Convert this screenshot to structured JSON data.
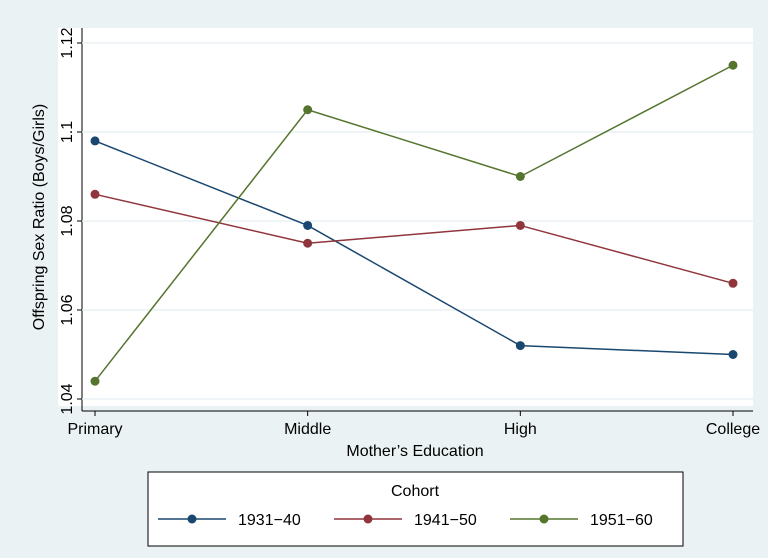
{
  "chart_data": {
    "type": "line",
    "x_label": "Mother’s Education",
    "y_label": "Offspring Sex Ratio (Boys/Girls)",
    "categories": [
      "Primary",
      "Middle",
      "High",
      "College"
    ],
    "series": [
      {
        "name": "1931−40",
        "color": "#1a476f",
        "values": [
          1.098,
          1.079,
          1.052,
          1.05
        ]
      },
      {
        "name": "1941−50",
        "color": "#90353b",
        "values": [
          1.086,
          1.075,
          1.079,
          1.066
        ]
      },
      {
        "name": "1951−60",
        "color": "#55752f",
        "values": [
          1.044,
          1.105,
          1.09,
          1.115
        ]
      }
    ],
    "legend_title": "Cohort",
    "ylim": [
      1.04,
      1.12
    ],
    "yticks": [
      1.04,
      1.06,
      1.08,
      1.1,
      1.12
    ],
    "grid": true,
    "legend_position": "bottom"
  }
}
